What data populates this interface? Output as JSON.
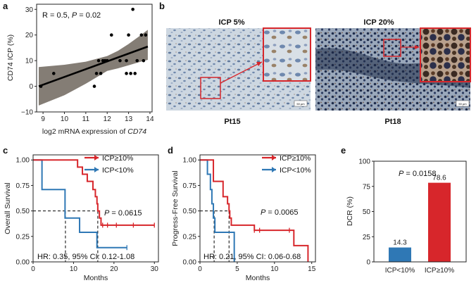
{
  "panels": {
    "a": "a",
    "b": "b",
    "c": "c",
    "d": "d",
    "e": "e"
  },
  "colors": {
    "red": "#d7262b",
    "blue": "#2f78b5",
    "band": "#6f665d",
    "ihc_bg": "#c9d4df",
    "ihc_dark": "#2a3550",
    "ihc_brown": "#7a4b2a"
  },
  "micrographs": {
    "left_title": "ICP 5%",
    "right_title": "ICP 20%",
    "left_caption": "Pt15",
    "right_caption": "Pt18",
    "scalebar_left": "50 µm",
    "scalebar_right": "50 µm"
  },
  "chart_data": [
    {
      "panel": "a",
      "type": "scatter",
      "annotation_R": "R = 0.5,",
      "annotation_P_italic": "P",
      "annotation_P_val": " = 0.02",
      "ylabel": "CD74 ICP (%)",
      "xlabel_prefix": "log2 mRNA expression of ",
      "xlabel_gene": "CD74",
      "xlim": [
        8.7,
        14.1
      ],
      "ylim": [
        -10,
        32
      ],
      "xticks": [
        9,
        10,
        11,
        12,
        13,
        14
      ],
      "yticks": [
        -10,
        0,
        10,
        20,
        30
      ],
      "x": [
        8.9,
        9.5,
        11.4,
        11.5,
        11.6,
        11.7,
        11.8,
        11.9,
        12.0,
        12.2,
        12.6,
        12.9,
        12.9,
        13.0,
        13.1,
        13.2,
        13.3,
        13.4,
        13.6,
        13.7,
        13.8
      ],
      "y": [
        0,
        5,
        0,
        5,
        10,
        5,
        10,
        10,
        10,
        20,
        10,
        5,
        10,
        20,
        5,
        30,
        5,
        10,
        20,
        10,
        20
      ],
      "fit": {
        "x": [
          8.8,
          13.9
        ],
        "y": [
          0,
          15.5
        ]
      },
      "ci_upper": [
        [
          8.8,
          7.5
        ],
        [
          10.0,
          8.4
        ],
        [
          11.0,
          9.6
        ],
        [
          12.0,
          11.8
        ],
        [
          12.5,
          13.8
        ],
        [
          13.0,
          16.5
        ],
        [
          13.5,
          19.5
        ],
        [
          13.9,
          22.0
        ]
      ],
      "ci_lower": [
        [
          8.8,
          -7.5
        ],
        [
          10.0,
          -3.5
        ],
        [
          11.0,
          1.0
        ],
        [
          12.0,
          6.0
        ],
        [
          12.5,
          7.0
        ],
        [
          13.0,
          8.2
        ],
        [
          13.5,
          9.4
        ],
        [
          13.9,
          10.3
        ]
      ]
    },
    {
      "panel": "c",
      "type": "line",
      "ylabel": "Overall Survival",
      "xlabel": "Months",
      "xlim": [
        0,
        31
      ],
      "ylim": [
        0,
        1.05
      ],
      "xticks": [
        0,
        10,
        20,
        30
      ],
      "yticks": [
        "0.00",
        "0.25",
        "0.50",
        "0.75",
        "1.00"
      ],
      "legend": [
        "ICP≥10%",
        "ICP<10%"
      ],
      "pvalue_italic": "P",
      "pvalue_val": " = 0.0615",
      "hr": "HR: 0.35, 95% CI: 0.12-1.08",
      "median_lines": [
        8.0,
        16.0
      ],
      "series": [
        {
          "name": "ICP≥10%",
          "color": "red",
          "steps": [
            [
              0,
              1.0
            ],
            [
              11.0,
              0.93
            ],
            [
              12.2,
              0.86
            ],
            [
              13.4,
              0.79
            ],
            [
              14.8,
              0.71
            ],
            [
              15.4,
              0.64
            ],
            [
              15.8,
              0.57
            ],
            [
              16.0,
              0.5
            ],
            [
              16.4,
              0.43
            ],
            [
              16.8,
              0.36
            ],
            [
              30.0,
              0.36
            ]
          ],
          "censors": [
            [
              17.2,
              0.36
            ],
            [
              18.4,
              0.36
            ],
            [
              20.6,
              0.36
            ],
            [
              24.8,
              0.36
            ],
            [
              30.0,
              0.36
            ]
          ]
        },
        {
          "name": "ICP<10%",
          "color": "blue",
          "steps": [
            [
              0,
              1.0
            ],
            [
              2.2,
              0.71
            ],
            [
              7.9,
              0.43
            ],
            [
              11.5,
              0.29
            ],
            [
              15.8,
              0.14
            ],
            [
              23.2,
              0.14
            ]
          ],
          "censors": [
            [
              23.2,
              0.14
            ]
          ]
        }
      ]
    },
    {
      "panel": "d",
      "type": "line",
      "ylabel": "Progress-Free Survival",
      "xlabel": "Months",
      "xlim": [
        0,
        15.5
      ],
      "ylim": [
        0,
        1.05
      ],
      "xticks": [
        0,
        5,
        10,
        15
      ],
      "yticks": [
        "0.00",
        "0.25",
        "0.50",
        "0.75",
        "1.00"
      ],
      "legend": [
        "ICP≥10%",
        "ICP<10%"
      ],
      "pvalue_italic": "P",
      "pvalue_val": " = 0.0065",
      "hr": "HR: 0.21, 95% CI: 0.06-0.68",
      "median_lines": [
        1.9,
        3.9
      ],
      "series": [
        {
          "name": "ICP≥10%",
          "color": "red",
          "steps": [
            [
              0,
              1.0
            ],
            [
              1.8,
              0.79
            ],
            [
              3.1,
              0.64
            ],
            [
              3.7,
              0.57
            ],
            [
              3.9,
              0.5
            ],
            [
              4.0,
              0.43
            ],
            [
              4.2,
              0.36
            ],
            [
              7.3,
              0.31
            ],
            [
              12.6,
              0.16
            ],
            [
              14.5,
              0.0
            ]
          ],
          "censors": [
            [
              7.3,
              0.31
            ],
            [
              8.0,
              0.31
            ],
            [
              12.0,
              0.31
            ]
          ]
        },
        {
          "name": "ICP<10%",
          "color": "blue",
          "steps": [
            [
              0,
              1.0
            ],
            [
              1.0,
              0.86
            ],
            [
              1.4,
              0.71
            ],
            [
              1.6,
              0.57
            ],
            [
              1.8,
              0.43
            ],
            [
              2.0,
              0.29
            ],
            [
              4.6,
              0.0
            ]
          ],
          "censors": []
        }
      ]
    },
    {
      "panel": "e",
      "type": "bar",
      "ylabel": "DCR (%)",
      "categories": [
        "ICP<10%",
        "ICP≥10%"
      ],
      "values": [
        14.3,
        78.6
      ],
      "value_labels": [
        "14.3",
        "78.6"
      ],
      "ylim": [
        0,
        100
      ],
      "yticks": [
        0,
        25,
        50,
        75,
        100
      ],
      "pvalue_italic": "P",
      "pvalue_val": " = 0.0158",
      "bar_colors": [
        "blue",
        "red"
      ]
    }
  ]
}
